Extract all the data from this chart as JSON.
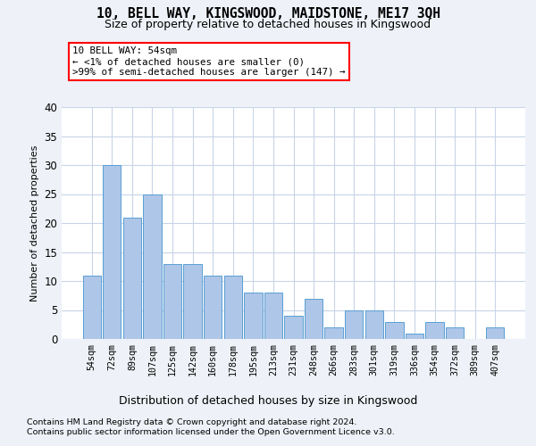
{
  "title": "10, BELL WAY, KINGSWOOD, MAIDSTONE, ME17 3QH",
  "subtitle": "Size of property relative to detached houses in Kingswood",
  "xlabel": "Distribution of detached houses by size in Kingswood",
  "ylabel": "Number of detached properties",
  "categories": [
    "54sqm",
    "72sqm",
    "89sqm",
    "107sqm",
    "125sqm",
    "142sqm",
    "160sqm",
    "178sqm",
    "195sqm",
    "213sqm",
    "231sqm",
    "248sqm",
    "266sqm",
    "283sqm",
    "301sqm",
    "319sqm",
    "336sqm",
    "354sqm",
    "372sqm",
    "389sqm",
    "407sqm"
  ],
  "values": [
    11,
    30,
    21,
    25,
    13,
    13,
    11,
    11,
    8,
    8,
    4,
    7,
    2,
    5,
    5,
    3,
    1,
    3,
    2,
    0,
    2
  ],
  "bar_color": "#aec6e8",
  "bar_edge_color": "#5a9fd4",
  "annotation_box_text": "10 BELL WAY: 54sqm\n← <1% of detached houses are smaller (0)\n>99% of semi-detached houses are larger (147) →",
  "ylim": [
    0,
    40
  ],
  "yticks": [
    0,
    5,
    10,
    15,
    20,
    25,
    30,
    35,
    40
  ],
  "footer_line1": "Contains HM Land Registry data © Crown copyright and database right 2024.",
  "footer_line2": "Contains public sector information licensed under the Open Government Licence v3.0.",
  "bg_color": "#eef2f8",
  "plot_bg_color": "#ffffff",
  "grid_color": "#c8d4e8"
}
